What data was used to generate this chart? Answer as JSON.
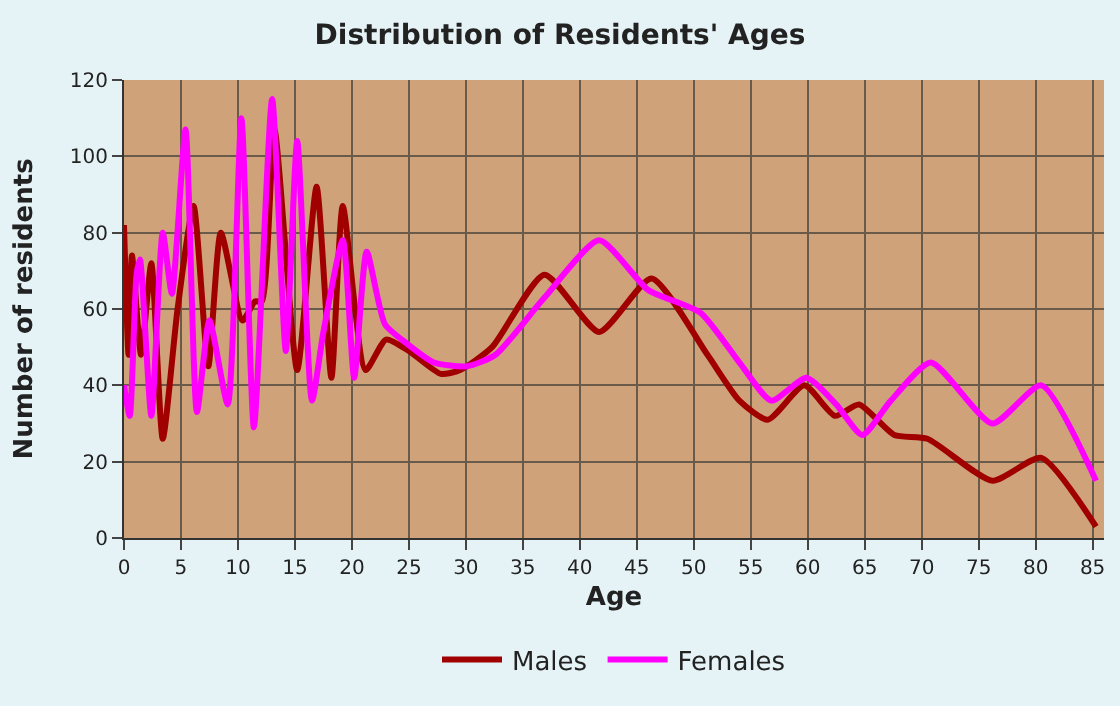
{
  "chart_data": {
    "type": "line",
    "title": "Distribution of Residents' Ages",
    "xlabel": "Age",
    "ylabel": "Number of residents",
    "xlim": [
      0,
      86
    ],
    "xticks": [
      0,
      5,
      10,
      15,
      20,
      25,
      30,
      35,
      40,
      45,
      50,
      55,
      60,
      65,
      70,
      75,
      80,
      85
    ],
    "ylim": [
      0,
      120
    ],
    "yticks": [
      0,
      20,
      40,
      60,
      80,
      100,
      120
    ],
    "grid": true,
    "legend": "bottom",
    "marker": "none",
    "line_style": "solid",
    "series": [
      {
        "name": "Males",
        "color": "#a00000",
        "x": [
          0,
          0.4,
          0.7,
          1.5,
          2.4,
          3.4,
          4.7,
          6.1,
          7.4,
          8.5,
          10.4,
          11.5,
          12.1,
          13.2,
          15.2,
          16.9,
          18.2,
          19.2,
          21.2,
          23,
          25,
          27.8,
          29.5,
          32.3,
          36.9,
          41.7,
          46.3,
          51.2,
          54,
          56.5,
          59.7,
          62.4,
          64.5,
          67.6,
          70.5,
          76.2,
          80.5,
          85.3
        ],
        "values": [
          82,
          48,
          74,
          48,
          72,
          26,
          60,
          87,
          45,
          80,
          57,
          62,
          62,
          107,
          44,
          92,
          42,
          87,
          44,
          52,
          49,
          43,
          44,
          50,
          69,
          54,
          68,
          48,
          36,
          31,
          40,
          32,
          35,
          27,
          26,
          15,
          21,
          3
        ]
      },
      {
        "name": "Females",
        "color": "#ff00ff",
        "x": [
          0,
          0.5,
          1.1,
          1.4,
          2.4,
          3.4,
          4.2,
          5.4,
          6.4,
          7.5,
          9.1,
          10.3,
          11.4,
          13,
          14.2,
          15.2,
          16.5,
          17.5,
          19.2,
          20.2,
          21.3,
          22.9,
          24.8,
          27.2,
          30.1,
          32.6,
          36.9,
          41.7,
          46,
          50.6,
          54,
          56.8,
          59.9,
          62.5,
          64.8,
          67.3,
          70.8,
          76.2,
          80.5,
          85.3
        ],
        "values": [
          40,
          32,
          69,
          73,
          32,
          80,
          64,
          107,
          33,
          57,
          35,
          110,
          29,
          115,
          49,
          104,
          36,
          54,
          78,
          42,
          75,
          56,
          51,
          46,
          45,
          48,
          63,
          78,
          65,
          59,
          46,
          36,
          42,
          35,
          27,
          36,
          46,
          30,
          40,
          15
        ]
      }
    ]
  }
}
